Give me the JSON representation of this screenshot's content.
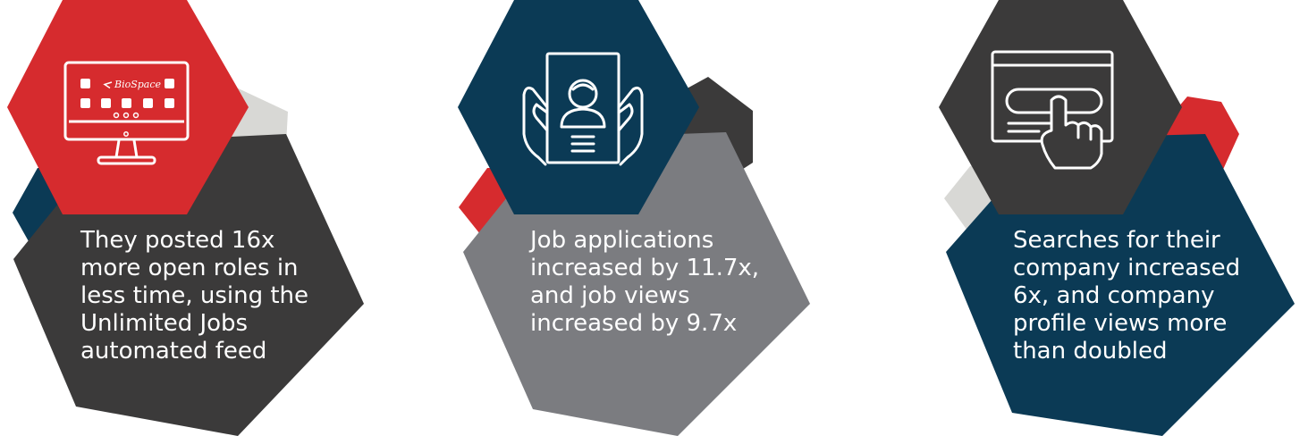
{
  "colors": {
    "red": "#D62B2E",
    "navy": "#0B3A55",
    "charcoal": "#3B3A3A",
    "mid_gray": "#7B7C80",
    "light_gray": "#D8D8D5",
    "white": "#FFFFFF"
  },
  "cards": [
    {
      "icon": "monitor-icon",
      "logo_text": "BioSpace",
      "text": "They posted 16x\nmore open roles in\nless time, using the\nUnlimited Jobs\nautomated feed"
    },
    {
      "icon": "resume-hands-icon",
      "text": "Job applications\nincreased by 11.7x,\nand job views\nincreased by 9.7x"
    },
    {
      "icon": "search-click-icon",
      "text": "Searches for their\ncompany increased\n6x, and company\nprofile views more\nthan doubled"
    }
  ]
}
